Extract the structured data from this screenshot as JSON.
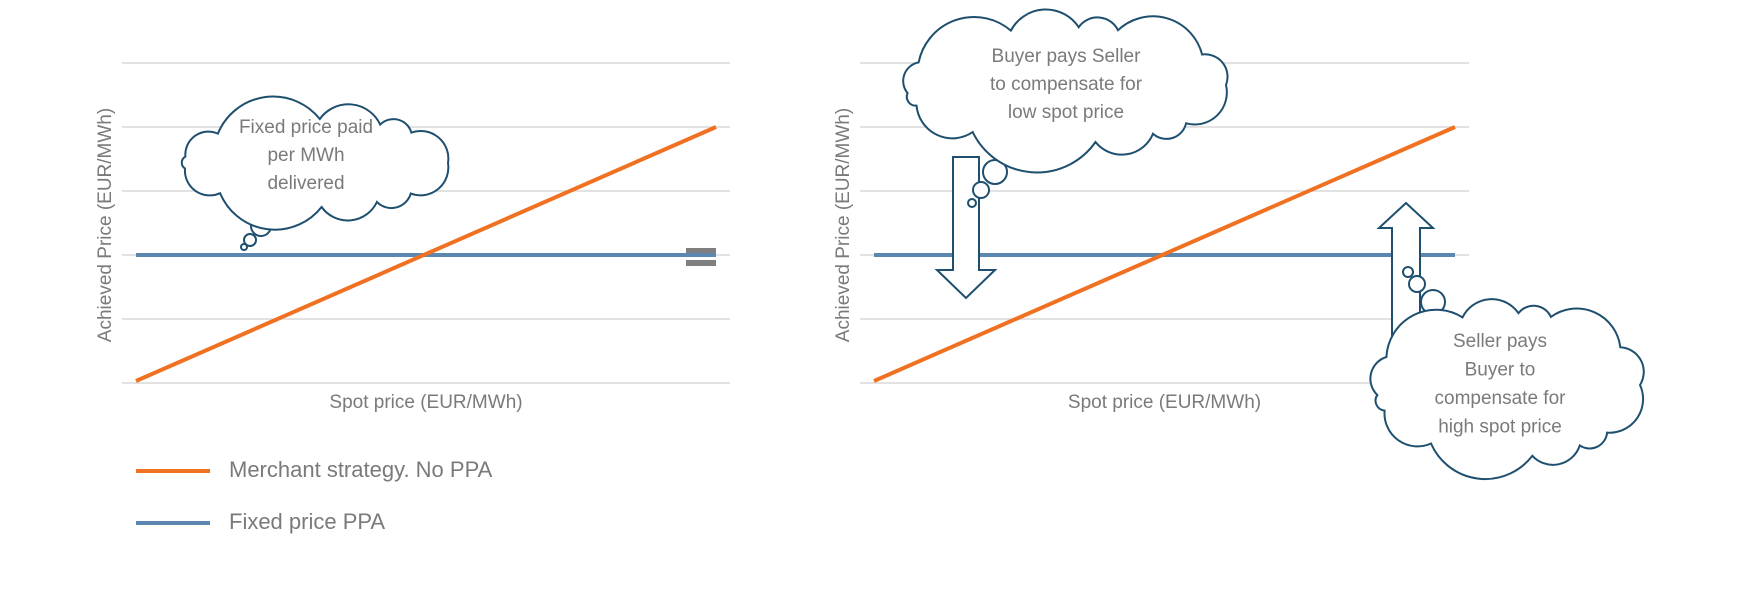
{
  "left_panel": {
    "y_axis_label": "Achieved Price (EUR/MWh)",
    "x_axis_label": "Spot price (EUR/MWh)",
    "callout": [
      "Fixed price paid",
      "per MWh",
      "delivered"
    ]
  },
  "right_panel": {
    "y_axis_label": "Achieved Price (EUR/MWh)",
    "x_axis_label": "Spot price (EUR/MWh)",
    "callouts": [
      [
        "Buyer pays Seller",
        "to compensate for",
        "low spot price"
      ],
      [
        "Seller pays",
        "Buyer to",
        "compensate for",
        "high spot price"
      ]
    ]
  },
  "legend": [
    {
      "label": "Merchant strategy. No PPA",
      "color": "#f07122"
    },
    {
      "label": "Fixed price PPA",
      "color": "#5b87b0"
    }
  ]
}
